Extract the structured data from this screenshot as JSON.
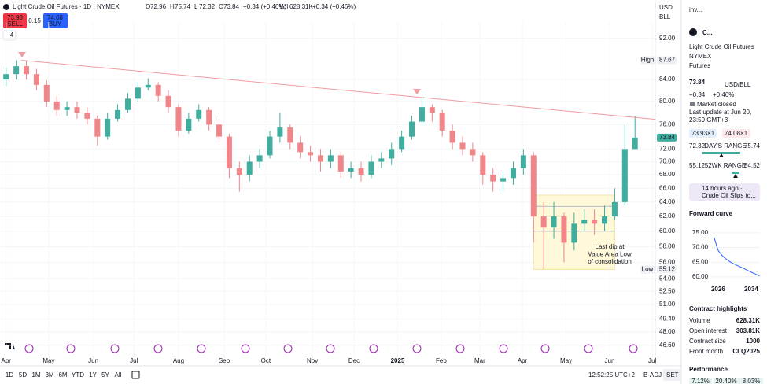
{
  "header": {
    "symbol": "Light Crude Oil Futures · 1D · NYMEX",
    "ohlc": [
      {
        "k": "O",
        "v": "72.96"
      },
      {
        "k": "H",
        "v": "75.74"
      },
      {
        "k": "L",
        "v": "72.32"
      },
      {
        "k": "C",
        "v": "73.84"
      }
    ],
    "change": "+0.34 (+0.46%)",
    "vol_label": "Vol",
    "vol": "628.31K",
    "vol_change": "+0.34 (+0.46%)",
    "sell": {
      "price": "73.93",
      "label": "SELL"
    },
    "spread": "0.15",
    "buy": {
      "price": "74.08",
      "label": "BUY"
    },
    "indicators": "4",
    "currency": "USD",
    "unit": "BLL"
  },
  "chart_data": [
    {
      "type": "candlestick",
      "categories": [
        null,
        null,
        null,
        null,
        null,
        null,
        null,
        null,
        null,
        null,
        null,
        null,
        null,
        null,
        null,
        null,
        null,
        null,
        null,
        null,
        null,
        null,
        null,
        null,
        null,
        null,
        null,
        null,
        null,
        null,
        null,
        null,
        null,
        null,
        null,
        null,
        null,
        null,
        null,
        null,
        null,
        null,
        null,
        null,
        null,
        null,
        null,
        null,
        null,
        null,
        null,
        null,
        null,
        null,
        null,
        null,
        null,
        null,
        null,
        null,
        null,
        null,
        null
      ],
      "open": [
        84,
        85,
        86.5,
        85,
        83,
        80,
        78.5,
        79,
        78,
        77,
        74,
        77,
        78.5,
        80.5,
        82.5,
        83,
        81,
        79,
        75,
        77,
        78.5,
        76,
        74,
        69,
        68,
        70,
        71,
        74,
        75.5,
        73,
        71.5,
        71,
        70,
        71,
        68.5,
        69,
        68,
        70,
        70.5,
        72,
        74,
        76.5,
        79,
        78,
        75,
        73,
        72,
        71,
        68,
        67,
        67.5,
        69,
        71,
        62,
        60.5,
        62,
        58.5,
        61,
        61.5,
        61,
        62,
        64,
        72
      ],
      "high": [
        86.2,
        87.67,
        87.5,
        86,
        83.8,
        81,
        80,
        80,
        79,
        77.5,
        78,
        79.5,
        81.5,
        83.5,
        84.2,
        83.5,
        82,
        79.5,
        78,
        79.5,
        79,
        77,
        74.5,
        70,
        71,
        72,
        75,
        78,
        76,
        74,
        72.5,
        72,
        72,
        71.5,
        70,
        70,
        71,
        71.5,
        73,
        75,
        77.5,
        80.5,
        79.5,
        78.5,
        76,
        74,
        73,
        71.5,
        69,
        68.5,
        70,
        72,
        71.5,
        64,
        64,
        62.5,
        62.5,
        63,
        63,
        63.5,
        66,
        76,
        77.5
      ],
      "low": [
        82.8,
        84,
        84,
        82,
        79,
        77.5,
        77.5,
        77,
        76,
        72.5,
        73.5,
        76.5,
        78,
        80,
        82,
        80,
        78,
        74,
        74.5,
        76.5,
        75,
        73,
        67.5,
        65.5,
        67,
        69,
        70.5,
        73,
        72,
        70.5,
        70,
        68.5,
        69,
        67.5,
        67.5,
        67,
        67.5,
        69,
        69.5,
        71.5,
        73.5,
        76,
        76.5,
        74,
        72,
        71,
        70,
        66.5,
        65.5,
        65.5,
        66.5,
        68,
        58.5,
        55.12,
        59,
        56,
        57.5,
        60,
        59.5,
        60,
        61.5,
        63.5,
        72
      ],
      "close": [
        85,
        86.5,
        85,
        83,
        80,
        78.5,
        79,
        78,
        77,
        74,
        77,
        78.5,
        80.5,
        82.5,
        83,
        81,
        79,
        75,
        77,
        78.5,
        76,
        74,
        69,
        68,
        70,
        71,
        74,
        75.5,
        73,
        71.5,
        71,
        70,
        71,
        68.5,
        69,
        68,
        70,
        70.5,
        72,
        74,
        76.5,
        79,
        78,
        75,
        73,
        72,
        71,
        68,
        67,
        67.5,
        69,
        71,
        62,
        60.5,
        62,
        58.5,
        61,
        61.5,
        61,
        62,
        64,
        72,
        73.84
      ],
      "up_color": "#3fae9f",
      "down_color": "#f0858a",
      "ylim": [
        45.3,
        95.4
      ],
      "log": true,
      "grid": true,
      "yticks": [
        {
          "value": 92,
          "label": "92.00"
        },
        {
          "value": 84,
          "label": "84.00"
        },
        {
          "value": 80,
          "label": "80.00"
        },
        {
          "value": 76,
          "label": "76.00"
        },
        {
          "value": 72,
          "label": "72.00"
        },
        {
          "value": 70,
          "label": "70.00"
        },
        {
          "value": 68,
          "label": "68.00"
        },
        {
          "value": 66,
          "label": "66.00"
        },
        {
          "value": 64,
          "label": "64.00"
        },
        {
          "value": 62,
          "label": "62.00"
        },
        {
          "value": 60,
          "label": "60.00"
        },
        {
          "value": 58,
          "label": "58.00"
        },
        {
          "value": 56,
          "label": "56.00"
        },
        {
          "value": 54,
          "label": "54.00"
        },
        {
          "value": 52.5,
          "label": "52.50"
        },
        {
          "value": 51,
          "label": "51.00"
        },
        {
          "value": 49.4,
          "label": "49.40"
        },
        {
          "value": 48,
          "label": "48.00"
        },
        {
          "value": 46.6,
          "label": "46.60"
        }
      ],
      "xlim": [
        -0.6,
        64
      ],
      "xticks": [
        {
          "value": 0,
          "label": "Apr"
        },
        {
          "value": 4.2,
          "label": "May"
        },
        {
          "value": 8.6,
          "label": "Jun"
        },
        {
          "value": 12.6,
          "label": "Jul"
        },
        {
          "value": 17,
          "label": "Aug"
        },
        {
          "value": 21.5,
          "label": "Sep"
        },
        {
          "value": 25.6,
          "label": "Oct"
        },
        {
          "value": 30.2,
          "label": "Nov"
        },
        {
          "value": 34.3,
          "label": "Dec"
        },
        {
          "value": 38.6,
          "label": "2025"
        },
        {
          "value": 42.9,
          "label": "Feb"
        },
        {
          "value": 46.7,
          "label": "Mar"
        },
        {
          "value": 50.9,
          "label": "Apr"
        },
        {
          "value": 55.2,
          "label": "May"
        },
        {
          "value": 59.5,
          "label": "Jun"
        },
        {
          "value": 63.7,
          "label": "Jul"
        }
      ],
      "price_labels": [
        {
          "text": "High",
          "value": 87.67
        },
        {
          "value": 73.84
        },
        {
          "text": "Low",
          "value": 55.12
        }
      ],
      "trendline": {
        "x": [
          1.5,
          64
        ],
        "y": [
          87.67,
          76.9
        ],
        "color": "#f19ca0"
      },
      "value_area": {
        "x": [
          52,
          60
        ],
        "y": [
          55.12,
          65
        ],
        "levels": [
          63.4,
          60
        ]
      },
      "annotation": [
        "Last dip at",
        "Value Area Low",
        "of consolidation"
      ]
    },
    {
      "type": "line",
      "x": [
        2025,
        2026,
        2027,
        2028,
        2029,
        2030,
        2031,
        2032,
        2033,
        2034,
        2035,
        2036
      ],
      "values": [
        73.5,
        69,
        67.2,
        66,
        65,
        64.3,
        63.6,
        63,
        62.3,
        61.6,
        61,
        60.3
      ],
      "color": "#2962ff",
      "xlim": [
        2024.5,
        2036.1
      ],
      "ylim": [
        58.9,
        77.1
      ],
      "xticks": [
        2026,
        2034
      ],
      "yticks": [
        {
          "value": 75,
          "label": "75.00"
        },
        {
          "value": 70,
          "label": "70.00"
        },
        {
          "value": 65,
          "label": "65.00"
        },
        {
          "value": 60,
          "label": "60.00"
        }
      ]
    }
  ],
  "toolbar": {
    "ranges": [
      "1D",
      "5D",
      "1M",
      "3M",
      "6M",
      "YTD",
      "1Y",
      "5Y",
      "All"
    ],
    "time": "12:52:25 UTC+2",
    "adjust": "B-ADJ",
    "settings": "SET"
  },
  "sidebar": {
    "watchlist": "inv...",
    "short_name": "C...",
    "name": "Light Crude Oil Futures",
    "exchange": "NYMEX",
    "kind": "Futures",
    "price": "73.84",
    "unit": "USD/BLL",
    "change": "+0.34",
    "change_pct": "+0.46%",
    "status": "Market closed",
    "updated": [
      "Last update at Jun 20,",
      "23:59 GMT+3"
    ],
    "bid": "73.93×1",
    "ask": "74.08×1",
    "day_range": {
      "low": "72.32",
      "label": "DAY'S RANGE",
      "high": "75.74"
    },
    "year_range": {
      "low": "55.12",
      "label": "52WK RANGE",
      "high": "84.52"
    },
    "news": [
      "14 hours ago ·",
      "Crude Oil Slips to..."
    ],
    "forward_title": "Forward curve",
    "highlights_title": "Contract highlights",
    "highlights": [
      [
        "Volume",
        "628.31K"
      ],
      [
        "Open interest",
        "303.81K"
      ],
      [
        "Contract size",
        "1000"
      ],
      [
        "Front month",
        "CLQ2025"
      ]
    ],
    "performance_title": "Performance",
    "performance": [
      "7.12%",
      "20.40%",
      "8.03%"
    ]
  }
}
